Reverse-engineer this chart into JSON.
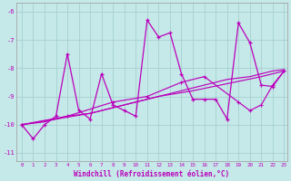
{
  "xlabel": "Windchill (Refroidissement éolien,°C)",
  "xlim_min": -0.5,
  "xlim_max": 23.3,
  "ylim_min": -11.3,
  "ylim_max": -5.7,
  "yticks": [
    -11,
    -10,
    -9,
    -8,
    -7,
    -6
  ],
  "xticks": [
    0,
    1,
    2,
    3,
    4,
    5,
    6,
    7,
    8,
    9,
    10,
    11,
    12,
    13,
    14,
    15,
    16,
    17,
    18,
    19,
    20,
    21,
    22,
    23
  ],
  "background_color": "#c5e8e8",
  "grid_color": "#a0cccc",
  "line_color": "#bb00bb",
  "series1": [
    [
      0,
      -10.0
    ],
    [
      1,
      -10.5
    ],
    [
      2,
      -10.0
    ],
    [
      3,
      -9.7
    ],
    [
      4,
      -7.5
    ],
    [
      5,
      -9.5
    ],
    [
      6,
      -9.8
    ],
    [
      7,
      -8.2
    ],
    [
      8,
      -9.3
    ],
    [
      9,
      -9.5
    ],
    [
      10,
      -9.7
    ],
    [
      11,
      -6.3
    ],
    [
      12,
      -6.9
    ],
    [
      13,
      -6.75
    ],
    [
      14,
      -8.2
    ],
    [
      15,
      -9.1
    ],
    [
      16,
      -9.1
    ],
    [
      17,
      -9.1
    ],
    [
      18,
      -9.8
    ],
    [
      19,
      -6.4
    ],
    [
      20,
      -7.1
    ],
    [
      21,
      -8.6
    ],
    [
      22,
      -8.65
    ],
    [
      23,
      -8.1
    ]
  ],
  "series2": [
    [
      0,
      -10.0
    ],
    [
      2,
      -9.9
    ],
    [
      4,
      -9.7
    ],
    [
      6,
      -9.6
    ],
    [
      8,
      -9.4
    ],
    [
      10,
      -9.2
    ],
    [
      12,
      -9.0
    ],
    [
      14,
      -8.8
    ],
    [
      16,
      -8.6
    ],
    [
      18,
      -8.4
    ],
    [
      20,
      -8.3
    ],
    [
      22,
      -8.1
    ],
    [
      23,
      -8.05
    ]
  ],
  "series3": [
    [
      0,
      -10.0
    ],
    [
      3,
      -9.8
    ],
    [
      6,
      -9.6
    ],
    [
      9,
      -9.3
    ],
    [
      12,
      -9.0
    ],
    [
      15,
      -8.8
    ],
    [
      18,
      -8.55
    ],
    [
      21,
      -8.3
    ],
    [
      23,
      -8.1
    ]
  ],
  "series4": [
    [
      0,
      -10.0
    ],
    [
      4,
      -9.7
    ],
    [
      8,
      -9.2
    ],
    [
      11,
      -9.0
    ],
    [
      14,
      -8.5
    ],
    [
      16,
      -8.3
    ],
    [
      19,
      -9.2
    ],
    [
      20,
      -9.5
    ],
    [
      21,
      -9.3
    ],
    [
      22,
      -8.6
    ],
    [
      23,
      -8.1
    ]
  ]
}
